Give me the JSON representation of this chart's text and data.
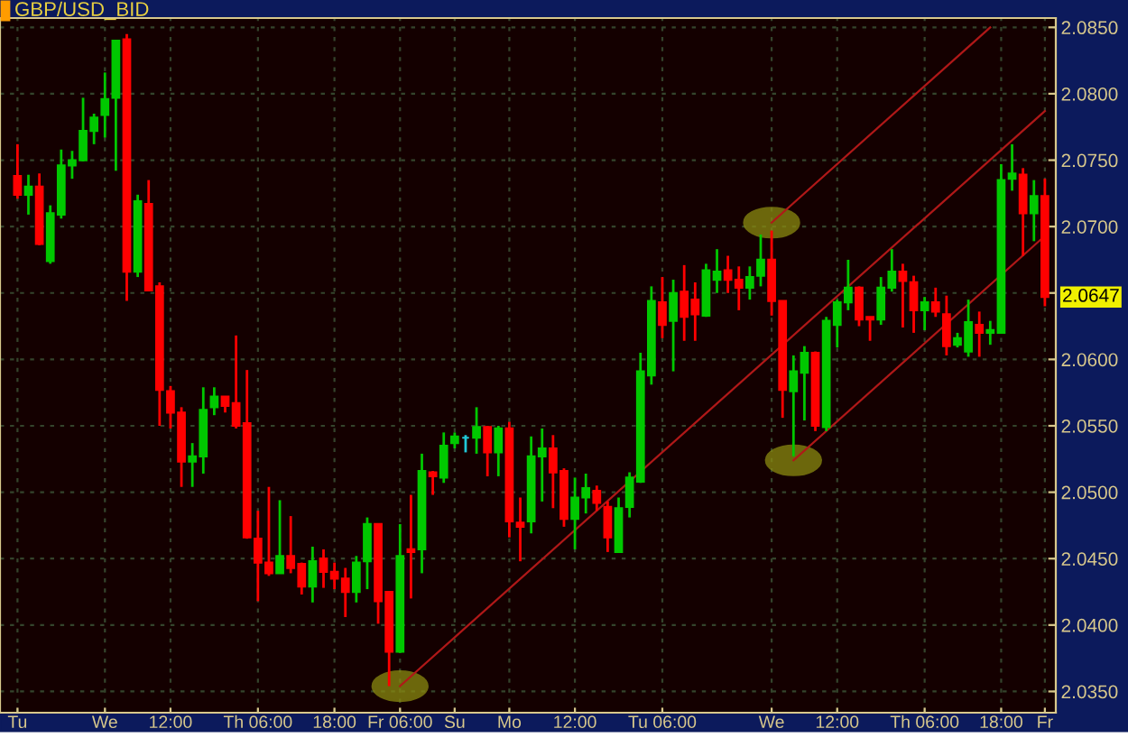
{
  "chart_data": {
    "type": "candlestick",
    "title": "GBP/USD_BID",
    "categories": [
      "Tu",
      null,
      null,
      null,
      null,
      null,
      null,
      null,
      "We",
      null,
      null,
      null,
      null,
      null,
      "12:00",
      null,
      null,
      null,
      null,
      null,
      null,
      null,
      "Th 06:00",
      null,
      null,
      null,
      null,
      null,
      null,
      "18:00",
      null,
      null,
      null,
      null,
      null,
      "Fr 06:00",
      null,
      null,
      null,
      null,
      "Su",
      null,
      null,
      null,
      null,
      "Mo",
      null,
      null,
      null,
      null,
      null,
      "12:00",
      null,
      null,
      null,
      null,
      null,
      null,
      null,
      "Tu 06:00",
      null,
      null,
      null,
      null,
      null,
      null,
      null,
      null,
      null,
      "We",
      null,
      null,
      null,
      null,
      null,
      "12:00",
      null,
      null,
      null,
      null,
      null,
      null,
      null,
      "Th 06:00",
      null,
      null,
      null,
      null,
      null,
      null,
      "18:00",
      null,
      null,
      null,
      "Fr"
    ],
    "ohlc": [
      [
        2.0738,
        2.0762,
        2.0721,
        2.0724
      ],
      [
        2.0724,
        2.0739,
        2.0709,
        2.073
      ],
      [
        2.073,
        2.074,
        2.0686,
        2.0687
      ],
      [
        2.0674,
        2.0716,
        2.0672,
        2.071
      ],
      [
        2.0709,
        2.0758,
        2.0706,
        2.0746
      ],
      [
        2.0746,
        2.0757,
        2.0736,
        2.075
      ],
      [
        2.075,
        2.0797,
        2.0749,
        2.0772
      ],
      [
        2.0772,
        2.0785,
        2.0762,
        2.0782
      ],
      [
        2.0784,
        2.0816,
        2.0767,
        2.0796
      ],
      [
        2.0797,
        2.084,
        2.0742,
        2.084
      ],
      [
        2.0841,
        2.0845,
        2.0644,
        2.0666
      ],
      [
        2.0666,
        2.0724,
        2.0662,
        2.0719
      ],
      [
        2.0717,
        2.0735,
        2.0652,
        2.0652
      ],
      [
        2.0655,
        2.0658,
        2.055,
        2.0577
      ],
      [
        2.0576,
        2.058,
        2.0548,
        2.056
      ],
      [
        2.056,
        2.0564,
        2.0504,
        2.0523
      ],
      [
        2.0523,
        2.0537,
        2.0504,
        2.0527
      ],
      [
        2.0527,
        2.0579,
        2.0514,
        2.0562
      ],
      [
        2.0564,
        2.0579,
        2.0558,
        2.0572
      ],
      [
        2.0572,
        2.0572,
        2.056,
        2.0565
      ],
      [
        2.0567,
        2.0618,
        2.0548,
        2.055
      ],
      [
        2.0552,
        2.0592,
        2.0465,
        2.0466
      ],
      [
        2.0465,
        2.0486,
        2.0418,
        2.0447
      ],
      [
        2.0447,
        2.0504,
        2.0437,
        2.0439
      ],
      [
        2.0439,
        2.0494,
        2.0439,
        2.0452
      ],
      [
        2.0452,
        2.0482,
        2.0439,
        2.0443
      ],
      [
        2.0446,
        2.0447,
        2.0423,
        2.0429
      ],
      [
        2.0429,
        2.0459,
        2.0417,
        2.0448
      ],
      [
        2.045,
        2.0457,
        2.0428,
        2.044
      ],
      [
        2.044,
        2.0447,
        2.0427,
        2.0435
      ],
      [
        2.0435,
        2.0443,
        2.0406,
        2.0425
      ],
      [
        2.0425,
        2.0452,
        2.0417,
        2.0447
      ],
      [
        2.0448,
        2.0481,
        2.0427,
        2.0476
      ],
      [
        2.0476,
        2.0476,
        2.0401,
        2.0418
      ],
      [
        2.0425,
        2.0425,
        2.0354,
        2.038
      ],
      [
        2.038,
        2.0476,
        2.0379,
        2.0452
      ],
      [
        2.0457,
        2.0498,
        2.042,
        2.0455
      ],
      [
        2.0457,
        2.0529,
        2.0439,
        2.0516
      ],
      [
        2.0515,
        2.0516,
        2.0498,
        2.0512
      ],
      [
        2.0511,
        2.0545,
        2.0507,
        2.0535
      ],
      [
        2.0537,
        2.0545,
        2.0533,
        2.0542
      ],
      [
        2.0541,
        2.0543,
        2.053,
        2.0541
      ],
      [
        2.0541,
        2.0564,
        2.0529,
        2.0549
      ],
      [
        2.0549,
        2.055,
        2.0512,
        2.053
      ],
      [
        2.053,
        2.055,
        2.0512,
        2.0548
      ],
      [
        2.0548,
        2.0553,
        2.0466,
        2.0478
      ],
      [
        2.0477,
        2.0496,
        2.0448,
        2.0474
      ],
      [
        2.0478,
        2.0542,
        2.0469,
        2.0527
      ],
      [
        2.0527,
        2.0548,
        2.0493,
        2.0533
      ],
      [
        2.0533,
        2.0543,
        2.0488,
        2.0515
      ],
      [
        2.0516,
        2.0518,
        2.0474,
        2.048
      ],
      [
        2.048,
        2.0511,
        2.0457,
        2.0496
      ],
      [
        2.0496,
        2.0514,
        2.0484,
        2.0503
      ],
      [
        2.0501,
        2.0505,
        2.0486,
        2.0492
      ],
      [
        2.0489,
        2.0493,
        2.0455,
        2.0466
      ],
      [
        2.0455,
        2.0496,
        2.0455,
        2.0488
      ],
      [
        2.0489,
        2.0515,
        2.0481,
        2.0511
      ],
      [
        2.0508,
        2.0605,
        2.0507,
        2.0591
      ],
      [
        2.0588,
        2.0655,
        2.0581,
        2.0644
      ],
      [
        2.0643,
        2.0662,
        2.0616,
        2.0626
      ],
      [
        2.0629,
        2.066,
        2.0591,
        2.065
      ],
      [
        2.0651,
        2.0671,
        2.0614,
        2.0632
      ],
      [
        2.0645,
        2.0658,
        2.0614,
        2.0634
      ],
      [
        2.0633,
        2.0672,
        2.0632,
        2.0667
      ],
      [
        2.066,
        2.0683,
        2.065,
        2.0666
      ],
      [
        2.0667,
        2.0678,
        2.065,
        2.066
      ],
      [
        2.066,
        2.067,
        2.0637,
        2.0654
      ],
      [
        2.0654,
        2.067,
        2.0645,
        2.0662
      ],
      [
        2.0663,
        2.0694,
        2.0655,
        2.0675
      ],
      [
        2.0675,
        2.0697,
        2.0633,
        2.0644
      ],
      [
        2.0644,
        2.0644,
        2.0556,
        2.0577
      ],
      [
        2.0576,
        2.0603,
        2.0527,
        2.0591
      ],
      [
        2.059,
        2.061,
        2.0554,
        2.0605
      ],
      [
        2.0605,
        2.0606,
        2.0546,
        2.055
      ],
      [
        2.0549,
        2.0632,
        2.0546,
        2.0629
      ],
      [
        2.0626,
        2.0645,
        2.0609,
        2.0643
      ],
      [
        2.0643,
        2.0675,
        2.0637,
        2.0654
      ],
      [
        2.0654,
        2.0655,
        2.0625,
        2.063
      ],
      [
        2.0632,
        2.0632,
        2.0614,
        2.063
      ],
      [
        2.063,
        2.0662,
        2.0626,
        2.0654
      ],
      [
        2.0654,
        2.0683,
        2.0651,
        2.0666
      ],
      [
        2.0666,
        2.0672,
        2.0624,
        2.0659
      ],
      [
        2.0658,
        2.0663,
        2.062,
        2.0637
      ],
      [
        2.0637,
        2.0647,
        2.0622,
        2.0643
      ],
      [
        2.0643,
        2.0654,
        2.0632,
        2.0636
      ],
      [
        2.0634,
        2.0648,
        2.0603,
        2.061
      ],
      [
        2.0611,
        2.062,
        2.0609,
        2.0616
      ],
      [
        2.0606,
        2.0645,
        2.0602,
        2.0628
      ],
      [
        2.0626,
        2.0636,
        2.0602,
        2.062
      ],
      [
        2.062,
        2.0629,
        2.0611,
        2.0622
      ],
      [
        2.062,
        2.0747,
        2.062,
        2.0735
      ],
      [
        2.0736,
        2.0762,
        2.0727,
        2.074
      ],
      [
        2.0739,
        2.0744,
        2.0678,
        2.071
      ],
      [
        2.071,
        2.0735,
        2.0689,
        2.0723
      ],
      [
        2.0723,
        2.0736,
        2.064,
        2.0647
      ]
    ],
    "colors": [
      "#ff0000",
      "#00c800",
      "#ff0000",
      "#00c800",
      "#00c800",
      "#00c800",
      "#00c800",
      "#00c800",
      "#00c800",
      "#00c800",
      "#ff0000",
      "#00c800",
      "#ff0000",
      "#ff0000",
      "#ff0000",
      "#ff0000",
      "#00c800",
      "#00c800",
      "#00c800",
      "#ff0000",
      "#ff0000",
      "#ff0000",
      "#ff0000",
      "#ff0000",
      "#00c800",
      "#ff0000",
      "#ff0000",
      "#00c800",
      "#ff0000",
      "#ff0000",
      "#ff0000",
      "#00c800",
      "#00c800",
      "#ff0000",
      "#ff0000",
      "#00c800",
      "#ff0000",
      "#00c800",
      "#ff0000",
      "#00c800",
      "#00c800",
      "#20c8d8",
      "#00c800",
      "#ff0000",
      "#00c800",
      "#ff0000",
      "#ff0000",
      "#00c800",
      "#00c800",
      "#ff0000",
      "#ff0000",
      "#00c800",
      "#00c800",
      "#ff0000",
      "#ff0000",
      "#00c800",
      "#00c800",
      "#00c800",
      "#00c800",
      "#ff0000",
      "#00c800",
      "#ff0000",
      "#ff0000",
      "#00c800",
      "#00c800",
      "#ff0000",
      "#ff0000",
      "#00c800",
      "#00c800",
      "#ff0000",
      "#ff0000",
      "#00c800",
      "#00c800",
      "#ff0000",
      "#00c800",
      "#00c800",
      "#00c800",
      "#ff0000",
      "#ff0000",
      "#00c800",
      "#00c800",
      "#ff0000",
      "#ff0000",
      "#00c800",
      "#ff0000",
      "#ff0000",
      "#00c800",
      "#00c800",
      "#ff0000",
      "#00c800",
      "#00c800",
      "#00c800",
      "#ff0000",
      "#00c800",
      "#ff0000"
    ],
    "series": [
      {
        "type": "line",
        "color": "#b01818",
        "values": [
          null,
          null,
          null,
          null,
          null,
          null,
          null,
          null,
          null,
          null,
          null,
          null,
          null,
          null,
          null,
          null,
          null,
          null,
          null,
          null,
          null,
          null,
          null,
          null,
          null,
          null,
          null,
          null,
          null,
          null,
          null,
          null,
          null,
          null,
          null,
          2.0354,
          null,
          null,
          null,
          null,
          null,
          null,
          null,
          null,
          null,
          null,
          null,
          null,
          null,
          null,
          null,
          null,
          null,
          null,
          null,
          null,
          null,
          null,
          null,
          null,
          null,
          null,
          null,
          null,
          null,
          null,
          null,
          null,
          null,
          null,
          null,
          null,
          null,
          null,
          null,
          null,
          null,
          null,
          null,
          null,
          null,
          null,
          null,
          null,
          null,
          null,
          null,
          null,
          null,
          null,
          null,
          null,
          null,
          null,
          2.0787
        ]
      },
      {
        "type": "line",
        "color": "#b01818",
        "values": [
          null,
          null,
          null,
          null,
          null,
          null,
          null,
          null,
          null,
          null,
          null,
          null,
          null,
          null,
          null,
          null,
          null,
          null,
          null,
          null,
          null,
          null,
          null,
          null,
          null,
          null,
          null,
          null,
          null,
          null,
          null,
          null,
          null,
          null,
          null,
          null,
          null,
          null,
          null,
          null,
          null,
          null,
          null,
          null,
          null,
          null,
          null,
          null,
          null,
          null,
          null,
          null,
          null,
          null,
          null,
          null,
          null,
          null,
          null,
          null,
          null,
          null,
          null,
          null,
          null,
          null,
          null,
          null,
          null,
          2.0703,
          null,
          null,
          null,
          null,
          null,
          null,
          null,
          null,
          null,
          null,
          null,
          null,
          null,
          null,
          null,
          null,
          null,
          null,
          null,
          2.085,
          null,
          null,
          null,
          null,
          null
        ]
      },
      {
        "type": "line",
        "color": "#b01818",
        "values": [
          null,
          null,
          null,
          null,
          null,
          null,
          null,
          null,
          null,
          null,
          null,
          null,
          null,
          null,
          null,
          null,
          null,
          null,
          null,
          null,
          null,
          null,
          null,
          null,
          null,
          null,
          null,
          null,
          null,
          null,
          null,
          null,
          null,
          null,
          null,
          null,
          null,
          null,
          null,
          null,
          null,
          null,
          null,
          null,
          null,
          null,
          null,
          null,
          null,
          null,
          null,
          null,
          null,
          null,
          null,
          null,
          null,
          null,
          null,
          null,
          null,
          null,
          null,
          null,
          null,
          null,
          null,
          null,
          null,
          null,
          null,
          2.0524,
          null,
          null,
          null,
          null,
          null,
          null,
          null,
          null,
          null,
          null,
          null,
          null,
          null,
          null,
          null,
          null,
          null,
          null,
          null,
          null,
          null,
          null,
          2.0693
        ]
      }
    ],
    "ylim": [
      2.0334,
      2.0857
    ],
    "yticks": [
      {
        "value": 2.035,
        "label": "2.0350"
      },
      {
        "value": 2.04,
        "label": "2.0400"
      },
      {
        "value": 2.045,
        "label": "2.0450"
      },
      {
        "value": 2.05,
        "label": "2.0500"
      },
      {
        "value": 2.055,
        "label": "2.0550"
      },
      {
        "value": 2.06,
        "label": "2.0600"
      },
      {
        "value": 2.065,
        "label": null
      },
      {
        "value": 2.07,
        "label": "2.0700"
      },
      {
        "value": 2.075,
        "label": "2.0750"
      },
      {
        "value": 2.08,
        "label": "2.0800"
      },
      {
        "value": 2.085,
        "label": "2.0850"
      }
    ],
    "grid": true,
    "annotations": [
      {
        "text": "2.0647",
        "y": 2.0647
      }
    ]
  }
}
